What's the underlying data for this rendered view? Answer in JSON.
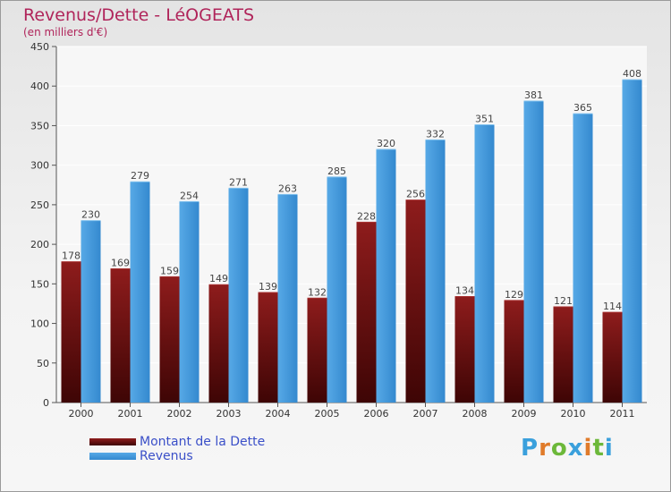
{
  "title": "Revenus/Dette - LéOGEATS",
  "subtitle": "(en milliers d'€)",
  "logo": {
    "text": "Proxiti",
    "colors": [
      "#3aa0dc",
      "#e07b2a",
      "#6cb83a",
      "#3aa0dc",
      "#e07b2a",
      "#6cb83a",
      "#3aa0dc"
    ]
  },
  "colors": {
    "dette": "#6b0a0a",
    "revenus": "#3a93d8"
  },
  "chart_data": {
    "type": "bar",
    "categories": [
      "2000",
      "2001",
      "2002",
      "2003",
      "2004",
      "2005",
      "2006",
      "2007",
      "2008",
      "2009",
      "2010",
      "2011"
    ],
    "series": [
      {
        "name": "Montant de la Dette",
        "values": [
          178,
          169,
          159,
          149,
          139,
          132,
          228,
          256,
          134,
          129,
          121,
          114
        ]
      },
      {
        "name": "Revenus",
        "values": [
          230,
          279,
          254,
          271,
          263,
          285,
          320,
          332,
          351,
          381,
          365,
          408
        ]
      }
    ],
    "ylim": [
      0,
      450
    ],
    "yticks": [
      0,
      50,
      100,
      150,
      200,
      250,
      300,
      350,
      400,
      450
    ],
    "legend_position": "bottom-left",
    "grid": true
  }
}
